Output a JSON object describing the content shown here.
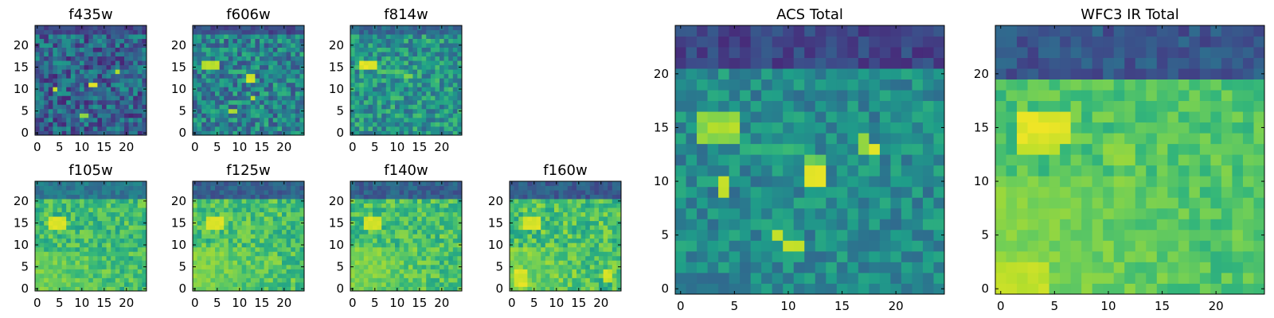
{
  "figure": {
    "background": "#ffffff",
    "colormap": "viridis",
    "colormap_stops": [
      "#440154",
      "#482878",
      "#3e4989",
      "#31688e",
      "#26828e",
      "#1f9e89",
      "#35b779",
      "#6ece58",
      "#b5de2b",
      "#fde725"
    ]
  },
  "chart_data": [
    {
      "type": "heatmap",
      "title": "f435w",
      "grid_size": 25,
      "xlim": [
        0,
        24
      ],
      "ylim": [
        0,
        24
      ],
      "xticks": [
        0,
        5,
        10,
        15,
        20
      ],
      "yticks": [
        0,
        5,
        10,
        15,
        20
      ],
      "grid": false,
      "legend": "none",
      "colormap": "viridis",
      "pattern": {
        "base": 0.32,
        "noise": 0.22,
        "top_dark_rows": 2,
        "top_dark_value": 0.12,
        "left_bright_value": 0,
        "left_bright_rows": [
          0,
          0
        ],
        "hotspots": [
          {
            "x": 4,
            "y": 10,
            "w": 1,
            "h": 1,
            "v": 0.95
          },
          {
            "x": 12,
            "y": 11,
            "w": 2,
            "h": 1,
            "v": 1.0
          },
          {
            "x": 18,
            "y": 14,
            "w": 1,
            "h": 1,
            "v": 0.9
          },
          {
            "x": 10,
            "y": 4,
            "w": 2,
            "h": 1,
            "v": 0.85
          },
          {
            "x": 4,
            "y": 16,
            "w": 4,
            "h": 1,
            "v": 0.55
          }
        ]
      },
      "seed": 11
    },
    {
      "type": "heatmap",
      "title": "f606w",
      "grid_size": 25,
      "xlim": [
        0,
        24
      ],
      "ylim": [
        0,
        24
      ],
      "xticks": [
        0,
        5,
        10,
        15,
        20
      ],
      "yticks": [
        0,
        5,
        10,
        15,
        20
      ],
      "grid": false,
      "legend": "none",
      "colormap": "viridis",
      "pattern": {
        "base": 0.45,
        "noise": 0.22,
        "top_dark_rows": 2,
        "top_dark_value": 0.15,
        "left_bright_value": 0,
        "left_bright_rows": [
          0,
          0
        ],
        "hotspots": [
          {
            "x": 2,
            "y": 15,
            "w": 4,
            "h": 2,
            "v": 0.92
          },
          {
            "x": 8,
            "y": 14,
            "w": 4,
            "h": 1,
            "v": 0.7
          },
          {
            "x": 12,
            "y": 12,
            "w": 2,
            "h": 2,
            "v": 0.95
          },
          {
            "x": 8,
            "y": 5,
            "w": 2,
            "h": 1,
            "v": 0.9
          },
          {
            "x": 13,
            "y": 8,
            "w": 1,
            "h": 1,
            "v": 0.9
          }
        ]
      },
      "seed": 23
    },
    {
      "type": "heatmap",
      "title": "f814w",
      "grid_size": 25,
      "xlim": [
        0,
        24
      ],
      "ylim": [
        0,
        24
      ],
      "xticks": [
        0,
        5,
        10,
        15,
        20
      ],
      "yticks": [
        0,
        5,
        10,
        15,
        20
      ],
      "grid": false,
      "legend": "none",
      "colormap": "viridis",
      "pattern": {
        "base": 0.52,
        "noise": 0.2,
        "top_dark_rows": 2,
        "top_dark_value": 0.25,
        "left_bright_value": 0,
        "left_bright_rows": [
          0,
          0
        ],
        "hotspots": [
          {
            "x": 2,
            "y": 15,
            "w": 4,
            "h": 2,
            "v": 0.98
          },
          {
            "x": 6,
            "y": 14,
            "w": 6,
            "h": 1,
            "v": 0.75
          },
          {
            "x": 12,
            "y": 13,
            "w": 2,
            "h": 1,
            "v": 0.85
          }
        ]
      },
      "seed": 37
    },
    {
      "type": "heatmap",
      "title": "f105w",
      "grid_size": 25,
      "xlim": [
        0,
        24
      ],
      "ylim": [
        0,
        24
      ],
      "xticks": [
        0,
        5,
        10,
        15,
        20
      ],
      "yticks": [
        0,
        5,
        10,
        15,
        20
      ],
      "grid": false,
      "legend": "none",
      "colormap": "viridis",
      "pattern": {
        "base": 0.68,
        "noise": 0.14,
        "top_dark_rows": 4,
        "top_dark_value": 0.3,
        "left_bright_value": 0.86,
        "left_bright_rows": [
          0,
          8
        ],
        "hotspots": [
          {
            "x": 3,
            "y": 14,
            "w": 4,
            "h": 3,
            "v": 0.97
          },
          {
            "x": 10,
            "y": 12,
            "w": 3,
            "h": 2,
            "v": 0.82
          }
        ]
      },
      "seed": 41
    },
    {
      "type": "heatmap",
      "title": "f125w",
      "grid_size": 25,
      "xlim": [
        0,
        24
      ],
      "ylim": [
        0,
        24
      ],
      "xticks": [
        0,
        5,
        10,
        15,
        20
      ],
      "yticks": [
        0,
        5,
        10,
        15,
        20
      ],
      "grid": false,
      "legend": "none",
      "colormap": "viridis",
      "pattern": {
        "base": 0.7,
        "noise": 0.14,
        "top_dark_rows": 4,
        "top_dark_value": 0.22,
        "left_bright_value": 0.88,
        "left_bright_rows": [
          0,
          9
        ],
        "hotspots": [
          {
            "x": 3,
            "y": 14,
            "w": 4,
            "h": 3,
            "v": 0.97
          },
          {
            "x": 10,
            "y": 12,
            "w": 3,
            "h": 2,
            "v": 0.83
          }
        ]
      },
      "seed": 53
    },
    {
      "type": "heatmap",
      "title": "f140w",
      "grid_size": 25,
      "xlim": [
        0,
        24
      ],
      "ylim": [
        0,
        24
      ],
      "xticks": [
        0,
        5,
        10,
        15,
        20
      ],
      "yticks": [
        0,
        5,
        10,
        15,
        20
      ],
      "grid": false,
      "legend": "none",
      "colormap": "viridis",
      "pattern": {
        "base": 0.7,
        "noise": 0.14,
        "top_dark_rows": 4,
        "top_dark_value": 0.22,
        "left_bright_value": 0.88,
        "left_bright_rows": [
          0,
          9
        ],
        "hotspots": [
          {
            "x": 3,
            "y": 14,
            "w": 4,
            "h": 3,
            "v": 0.97
          },
          {
            "x": 10,
            "y": 12,
            "w": 3,
            "h": 2,
            "v": 0.83
          }
        ]
      },
      "seed": 67
    },
    {
      "type": "heatmap",
      "title": "f160w",
      "grid_size": 25,
      "xlim": [
        0,
        24
      ],
      "ylim": [
        0,
        24
      ],
      "xticks": [
        0,
        5,
        10,
        15,
        20
      ],
      "yticks": [
        0,
        5,
        10,
        15,
        20
      ],
      "grid": false,
      "legend": "none",
      "colormap": "viridis",
      "pattern": {
        "base": 0.7,
        "noise": 0.16,
        "top_dark_rows": 4,
        "top_dark_value": 0.2,
        "left_bright_value": 0.88,
        "left_bright_rows": [
          0,
          9
        ],
        "hotspots": [
          {
            "x": 3,
            "y": 14,
            "w": 4,
            "h": 3,
            "v": 0.97
          },
          {
            "x": 1,
            "y": 1,
            "w": 3,
            "h": 4,
            "v": 0.97
          },
          {
            "x": 21,
            "y": 2,
            "w": 2,
            "h": 3,
            "v": 0.95
          }
        ]
      },
      "seed": 79
    },
    {
      "type": "heatmap",
      "title": "ACS Total",
      "grid_size": 25,
      "xlim": [
        0,
        24
      ],
      "ylim": [
        0,
        24
      ],
      "xticks": [
        0,
        5,
        10,
        15,
        20
      ],
      "yticks": [
        0,
        5,
        10,
        15,
        20
      ],
      "grid": false,
      "legend": "none",
      "colormap": "viridis",
      "pattern": {
        "base": 0.48,
        "noise": 0.14,
        "top_dark_rows": 4,
        "top_dark_value": 0.12,
        "left_bright_value": 0,
        "left_bright_rows": [
          0,
          0
        ],
        "hotspots": [
          {
            "x": 2,
            "y": 14,
            "w": 4,
            "h": 3,
            "v": 0.85
          },
          {
            "x": 3,
            "y": 15,
            "w": 3,
            "h": 1,
            "v": 0.92
          },
          {
            "x": 6,
            "y": 13,
            "w": 6,
            "h": 1,
            "v": 0.68
          },
          {
            "x": 12,
            "y": 10,
            "w": 2,
            "h": 2,
            "v": 1.0
          },
          {
            "x": 12,
            "y": 12,
            "w": 2,
            "h": 1,
            "v": 0.78
          },
          {
            "x": 17,
            "y": 13,
            "w": 1,
            "h": 2,
            "v": 0.85
          },
          {
            "x": 18,
            "y": 13,
            "w": 1,
            "h": 1,
            "v": 0.98
          },
          {
            "x": 4,
            "y": 9,
            "w": 1,
            "h": 2,
            "v": 0.95
          },
          {
            "x": 9,
            "y": 5,
            "w": 1,
            "h": 1,
            "v": 0.95
          },
          {
            "x": 10,
            "y": 4,
            "w": 2,
            "h": 1,
            "v": 0.92
          }
        ]
      },
      "seed": 97
    },
    {
      "type": "heatmap",
      "title": "WFC3 IR Total",
      "grid_size": 25,
      "xlim": [
        0,
        24
      ],
      "ylim": [
        0,
        24
      ],
      "xticks": [
        0,
        5,
        10,
        15,
        20
      ],
      "yticks": [
        0,
        5,
        10,
        15,
        20
      ],
      "grid": false,
      "legend": "none",
      "colormap": "viridis",
      "pattern": {
        "base": 0.72,
        "noise": 0.09,
        "top_dark_rows": 5,
        "top_dark_value": 0.18,
        "left_bright_value": 0.88,
        "left_bright_rows": [
          0,
          10
        ],
        "hotspots": [
          {
            "x": 2,
            "y": 14,
            "w": 5,
            "h": 3,
            "v": 0.98
          },
          {
            "x": 2,
            "y": 13,
            "w": 4,
            "h": 1,
            "v": 0.92
          },
          {
            "x": 10,
            "y": 12,
            "w": 3,
            "h": 2,
            "v": 0.86
          },
          {
            "x": 0,
            "y": 0,
            "w": 5,
            "h": 3,
            "v": 0.93
          }
        ]
      },
      "seed": 113
    }
  ]
}
